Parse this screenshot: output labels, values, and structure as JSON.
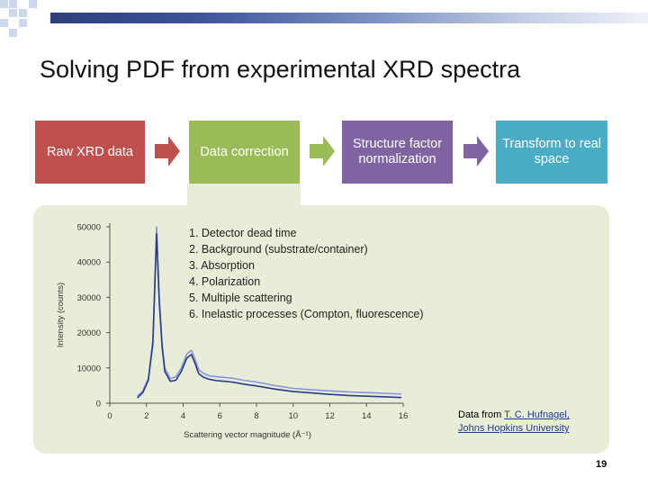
{
  "slide": {
    "title": "Solving PDF from experimental XRD spectra",
    "page_number": "19"
  },
  "workflow": {
    "steps": [
      {
        "label": "Raw XRD data",
        "color": "#c0504d"
      },
      {
        "label": "Data correction",
        "color": "#9bbb59"
      },
      {
        "label": "Structure factor normalization",
        "color": "#8064a2"
      },
      {
        "label": "Transform to real space",
        "color": "#4bacc6"
      }
    ],
    "arrow_color": "#c0504d"
  },
  "corrections": [
    "1. Detector dead time",
    "2. Background (substrate/container)",
    "3. Absorption",
    "4. Polarization",
    "5. Multiple scattering",
    "6. Inelastic processes (Compton, fluorescence)"
  ],
  "credit": {
    "prefix": "Data from ",
    "author": "T. C. Hufnagel,",
    "affiliation": "Johns Hopkins University"
  },
  "chart_data": {
    "type": "line",
    "xlabel": "Scattering vector magnitude (Å⁻¹)",
    "ylabel": "Intensity (counts)",
    "xlim": [
      0,
      16
    ],
    "ylim": [
      0,
      50000
    ],
    "xticks": [
      0,
      2,
      4,
      6,
      8,
      10,
      12,
      14,
      16
    ],
    "yticks": [
      0,
      10000,
      20000,
      30000,
      40000,
      50000
    ],
    "grid": false,
    "series": [
      {
        "color": "#8a94d8",
        "x": [
          1.5,
          1.8,
          2.1,
          2.35,
          2.55,
          2.7,
          2.85,
          3.0,
          3.3,
          3.6,
          3.9,
          4.2,
          4.45,
          4.65,
          4.85,
          5.1,
          5.4,
          5.8,
          6.3,
          6.8,
          7.3,
          8.0,
          9.0,
          10.0,
          11.0,
          12.0,
          13.0,
          14.0,
          15.0,
          15.9
        ],
        "values": [
          2000,
          3500,
          7000,
          18000,
          50000,
          30000,
          17000,
          10000,
          7000,
          7500,
          10000,
          14000,
          15000,
          12500,
          9500,
          8500,
          7800,
          7500,
          7300,
          7000,
          6500,
          6000,
          5000,
          4200,
          3800,
          3500,
          3200,
          3000,
          2800,
          2600
        ]
      },
      {
        "color": "#2a3a8c",
        "x": [
          1.5,
          1.8,
          2.1,
          2.35,
          2.55,
          2.7,
          2.85,
          3.0,
          3.3,
          3.6,
          3.9,
          4.2,
          4.45,
          4.65,
          4.85,
          5.1,
          5.4,
          5.8,
          6.3,
          6.8,
          7.3,
          8.0,
          9.0,
          10.0,
          11.0,
          12.0,
          13.0,
          14.0,
          15.0,
          15.9
        ],
        "values": [
          1500,
          3000,
          6500,
          17000,
          48000,
          28500,
          16000,
          9000,
          6200,
          6500,
          9000,
          12800,
          13800,
          11300,
          8400,
          7400,
          6800,
          6400,
          6200,
          5900,
          5400,
          4900,
          4000,
          3300,
          2900,
          2500,
          2200,
          2000,
          1800,
          1600
        ]
      }
    ]
  }
}
